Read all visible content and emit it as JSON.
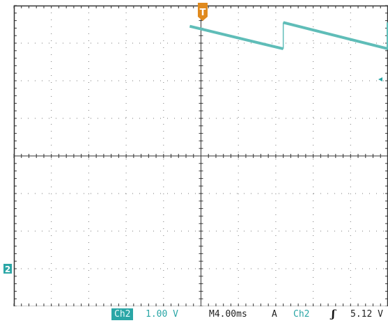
{
  "colors": {
    "grid": "#333333",
    "trace": "#5fbdb8",
    "trigger": "#e08a1e",
    "channel_box": "#2aa6a6",
    "text": "#222222",
    "background": "#ffffff"
  },
  "trigger_marker": {
    "label": "T"
  },
  "channel_marker": {
    "label": "2"
  },
  "status": {
    "channel_box": "Ch2",
    "volts_per_div": "1.00 V",
    "timebase": "M4.00ms",
    "trigger_mode": "A",
    "trigger_source": "Ch2",
    "trigger_slope": "rising-edge-icon",
    "trigger_level": "5.12 V"
  },
  "waveform": {
    "type": "sawtooth",
    "segments": [
      {
        "t_start_div": -0.3,
        "t_end_div": 2.2,
        "v_start_div": 3.45,
        "v_end_div": 2.85
      },
      {
        "t_start_div": 2.2,
        "t_end_div": 5.0,
        "v_start_div": 3.55,
        "v_end_div": 2.85
      },
      {
        "t_start_div": 5.0,
        "t_end_div": 7.7,
        "v_start_div": 3.55,
        "v_end_div": 2.85
      },
      {
        "t_start_div": 7.7,
        "t_end_div": 9.9,
        "v_start_div": 3.55,
        "v_end_div": 3.0
      }
    ]
  }
}
